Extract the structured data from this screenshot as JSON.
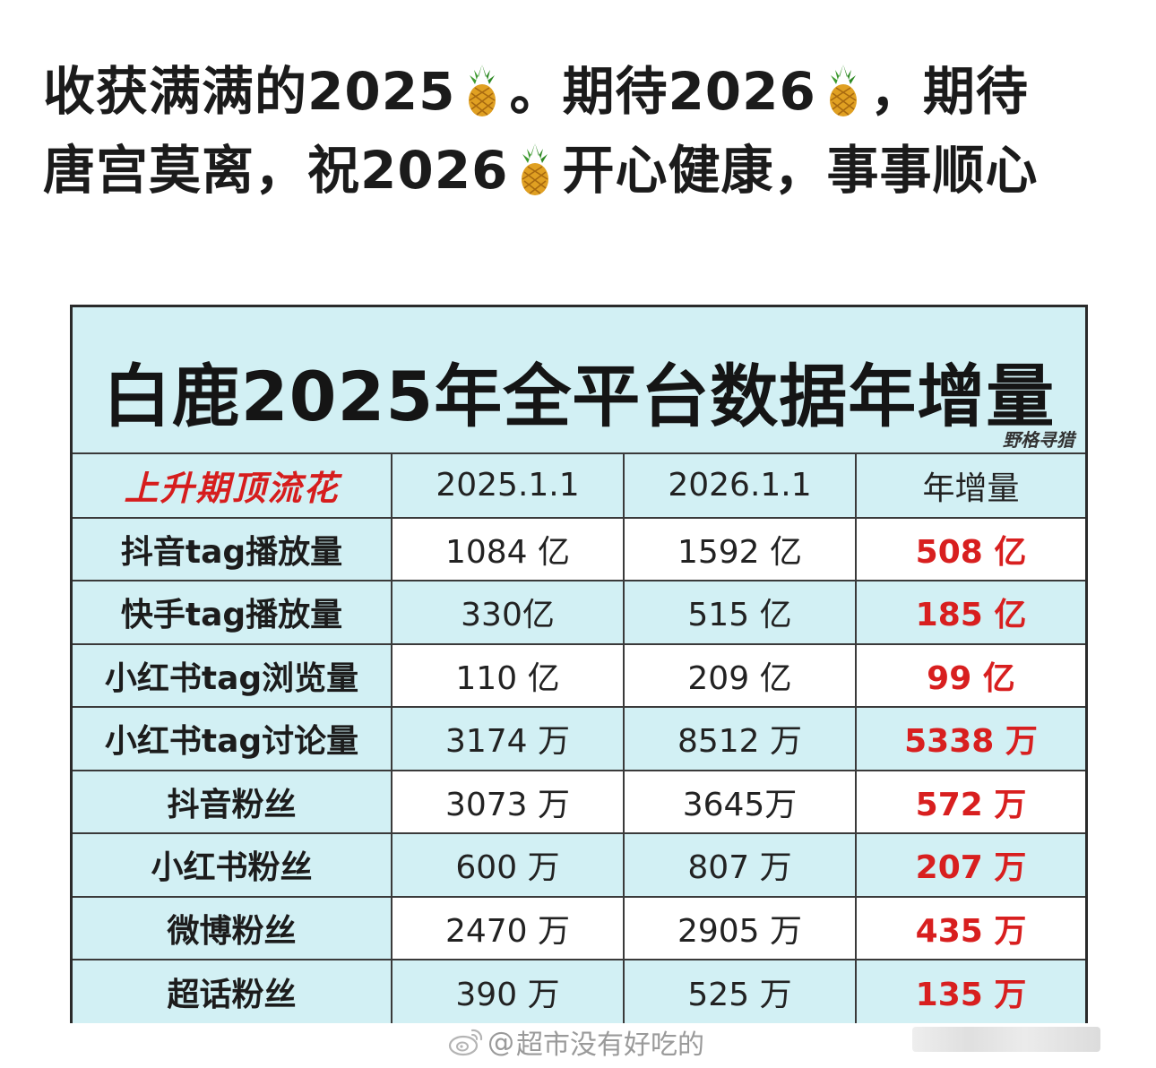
{
  "post": {
    "line1": {
      "part1": "收获满满的2025",
      "part2": "。期待2026",
      "part3": "，期待"
    },
    "line2": {
      "part1": "唐宫莫离，祝2026",
      "part2": "开心健康，事事顺心"
    },
    "emoji_icon": "pineapple-icon"
  },
  "card": {
    "title": "白鹿2025年全平台数据年增量",
    "watermark": "野格寻猎",
    "headers": [
      "上升期顶流花",
      "2025.1.1",
      "2026.1.1",
      "年增量"
    ],
    "rows": [
      {
        "metric": "抖音tag播放量",
        "v2025": "1084 亿",
        "v2026": "1592 亿",
        "gain": "508 亿"
      },
      {
        "metric": "快手tag播放量",
        "v2025": "330亿",
        "v2026": "515 亿",
        "gain": "185 亿"
      },
      {
        "metric": "小红书tag浏览量",
        "v2025": "110 亿",
        "v2026": "209 亿",
        "gain": "99 亿"
      },
      {
        "metric": "小红书tag讨论量",
        "v2025": "3174 万",
        "v2026": "8512 万",
        "gain": "5338 万"
      },
      {
        "metric": "抖音粉丝",
        "v2025": "3073 万",
        "v2026": "3645万",
        "gain": "572 万"
      },
      {
        "metric": "小红书粉丝",
        "v2025": "600 万",
        "v2026": "807 万",
        "gain": "207 万"
      },
      {
        "metric": "微博粉丝",
        "v2025": "2470 万",
        "v2026": "2905 万",
        "gain": "435 万"
      },
      {
        "metric": "超话粉丝",
        "v2025": "390 万",
        "v2026": "525 万",
        "gain": "135 万"
      }
    ],
    "colors": {
      "background": "#d2f0f4",
      "gain": "#d81f1f",
      "corner_header": "#d61d1d"
    }
  },
  "footer": {
    "icon": "weibo-icon",
    "at": "@",
    "username": "超市没有好吃的"
  }
}
